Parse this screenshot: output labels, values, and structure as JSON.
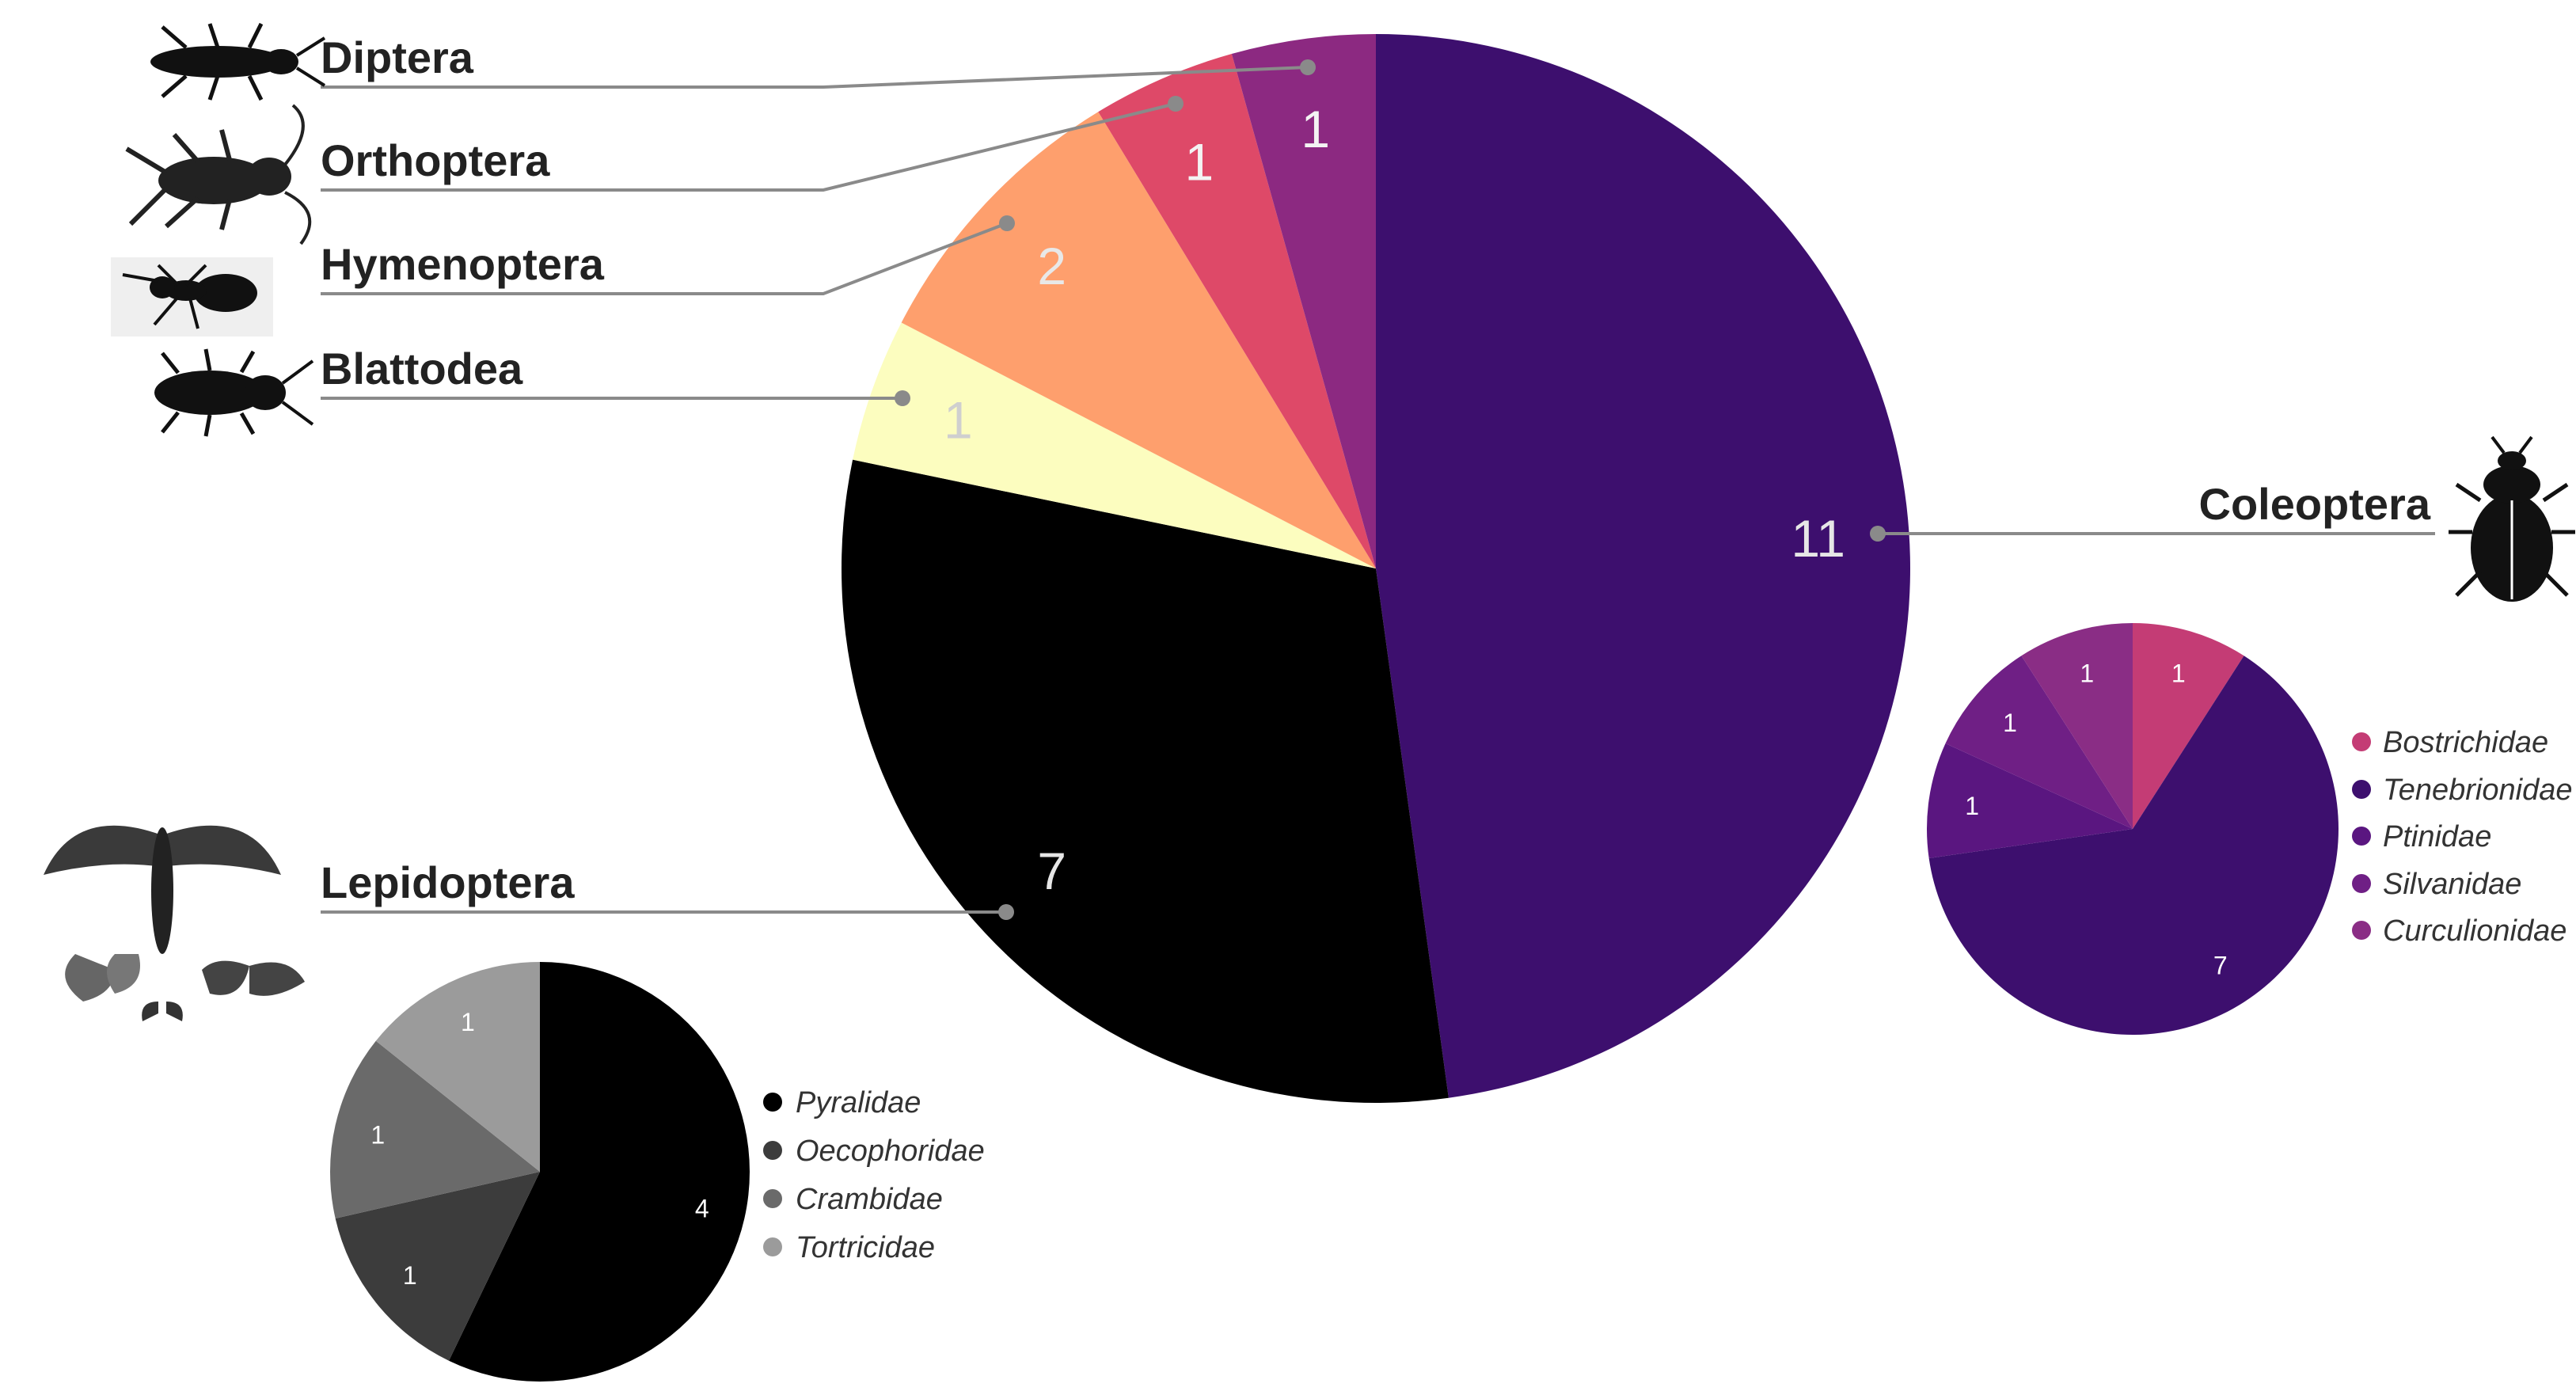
{
  "chart_data": [
    {
      "type": "pie",
      "categories": [
        "Coleoptera",
        "Lepidoptera",
        "Blattodea",
        "Hymenoptera",
        "Orthoptera",
        "Diptera"
      ],
      "values": [
        11,
        7,
        1,
        2,
        1,
        1
      ],
      "value_labels": [
        "11",
        "7",
        "1",
        "2",
        "1",
        "1"
      ],
      "colors": [
        "#3d0f6e",
        "#000000",
        "#fcfdbf",
        "#fe9f6d",
        "#de4968",
        "#8c2981"
      ],
      "label_colors": [
        "#e6e6e6",
        "#e6e6e6",
        "#cfcfcf",
        "#e8e8e8",
        "#f3f3f3",
        "#f3f3f3"
      ],
      "icons": [
        "beetle-icon",
        "moth-icon",
        "cockroach-icon",
        "ant-icon",
        "cricket-icon",
        "fly-icon"
      ]
    },
    {
      "type": "pie",
      "categories": [
        "Pyralidae",
        "Oecophoridae",
        "Crambidae",
        "Tortricidae"
      ],
      "values": [
        4,
        1,
        1,
        1
      ],
      "value_labels": [
        "4",
        "1",
        "1",
        "1"
      ],
      "colors": [
        "#000000",
        "#3c3c3c",
        "#6a6a6a",
        "#9b9b9b"
      ],
      "legend": [
        "Pyralidae",
        "Oecophoridae",
        "Crambidae",
        "Tortricidae"
      ]
    },
    {
      "type": "pie",
      "categories": [
        "Bostrichidae",
        "Tenebrionidae",
        "Ptinidae",
        "Silvanidae",
        "Curculionidae"
      ],
      "values": [
        1,
        7,
        1,
        1,
        1
      ],
      "value_labels": [
        "1",
        "7",
        "1",
        "1",
        "1"
      ],
      "colors": [
        "#c43c75",
        "#3d0f6e",
        "#5a1680",
        "#6f1f85",
        "#8a2d85"
      ],
      "legend": [
        "Bostrichidae",
        "Tenebrionidae",
        "Ptinidae",
        "Silvanidae",
        "Curculionidae"
      ]
    }
  ]
}
